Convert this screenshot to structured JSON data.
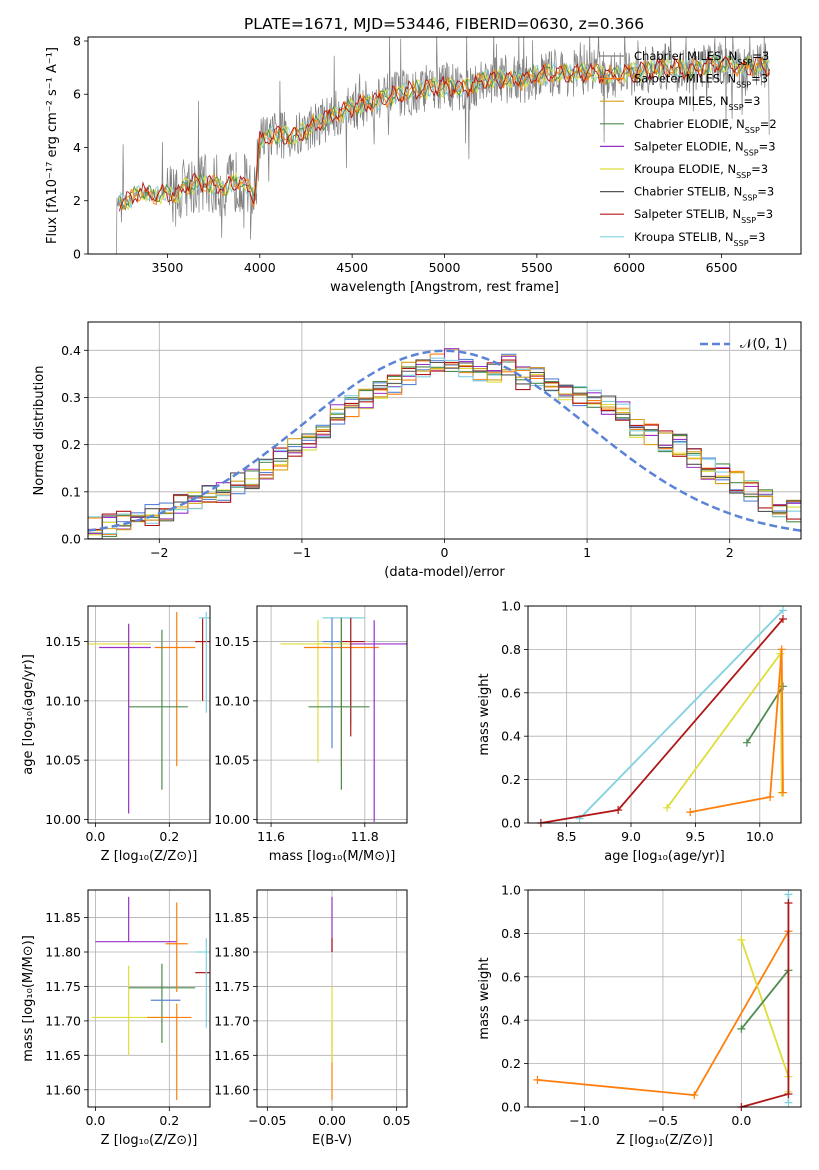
{
  "figure": {
    "title": "PLATE=1671, MJD=53446, FIBERID=0630, z=0.366"
  },
  "colors": {
    "chabrier_miles": "#808080",
    "salpeter_miles": "#ff7f0e",
    "kroupa_miles": "#d4a017",
    "chabrier_elodie": "#4e8b4e",
    "salpeter_elodie": "#9b30c8",
    "kroupa_elodie": "#dede3a",
    "chabrier_stelib": "#555555",
    "salpeter_stelib": "#b01818",
    "kroupa_stelib": "#80d0e0",
    "normal": "#5b84d6"
  },
  "chart_data": [
    {
      "id": "spectrum",
      "type": "line",
      "xlabel": "wavelength [Angstrom, rest frame]",
      "ylabel": "Flux [fλ10⁻¹⁷ erg cm⁻² s⁻¹ A⁻¹]",
      "xlim": [
        3070,
        6930
      ],
      "ylim": [
        0,
        8.15
      ],
      "xticks": [
        "3500",
        "4000",
        "4500",
        "5000",
        "5500",
        "6000",
        "6500"
      ],
      "yticks": [
        "0",
        "2",
        "4",
        "6",
        "8"
      ],
      "grid": false,
      "legend_position": "top-right",
      "legend": [
        "Chabrier MILES, N_SSP=3",
        "Salpeter MILES, N_SSP=3",
        "Kroupa MILES, N_SSP=3",
        "Chabrier ELODIE, N_SSP=2",
        "Salpeter ELODIE, N_SSP=3",
        "Kroupa ELODIE, N_SSP=3",
        "Chabrier STELIB, N_SSP=3",
        "Salpeter STELIB, N_SSP=3",
        "Kroupa STELIB, N_SSP=3"
      ],
      "model_envelope": {
        "x": [
          3220,
          3300,
          3350,
          3400,
          3500,
          3560,
          3600,
          3700,
          3800,
          3900,
          3970,
          4000,
          4100,
          4200,
          4300,
          4400,
          4500,
          4600,
          4700,
          4800,
          4900,
          5000,
          5100,
          5200,
          5300,
          5400,
          5500,
          5600,
          5700,
          5800,
          5900,
          6000,
          6100,
          6200,
          6300,
          6400,
          6500,
          6600,
          6700,
          6750
        ],
        "y": [
          1.9,
          2.0,
          2.4,
          2.2,
          2.3,
          2.2,
          2.6,
          2.7,
          2.5,
          2.8,
          2.1,
          4.3,
          4.5,
          4.4,
          4.9,
          5.2,
          5.5,
          5.7,
          5.9,
          6.1,
          6.2,
          6.3,
          6.2,
          6.5,
          6.6,
          6.5,
          6.7,
          6.8,
          6.8,
          6.8,
          6.7,
          6.8,
          6.9,
          7.0,
          6.9,
          7.0,
          7.2,
          7.0,
          7.1,
          7.0
        ]
      }
    },
    {
      "id": "residuals",
      "type": "histogram",
      "xlabel": "(data-model)/error",
      "ylabel": "Normed distribution",
      "xlim": [
        -2.5,
        2.5
      ],
      "ylim": [
        0,
        0.46
      ],
      "xticks": [
        "−2",
        "−1",
        "0",
        "1",
        "2"
      ],
      "yticks": [
        "0.0",
        "0.1",
        "0.2",
        "0.3",
        "0.4"
      ],
      "grid": true,
      "legend_position": "top-right",
      "legend": [
        "𝒩(0, 1)"
      ],
      "bin_edges": [
        -2.5,
        -2.4,
        -2.3,
        -2.2,
        -2.1,
        -2.0,
        -1.9,
        -1.8,
        -1.7,
        -1.6,
        -1.5,
        -1.4,
        -1.3,
        -1.2,
        -1.1,
        -1.0,
        -0.9,
        -0.8,
        -0.7,
        -0.6,
        -0.5,
        -0.4,
        -0.3,
        -0.2,
        -0.1,
        0.0,
        0.1,
        0.2,
        0.3,
        0.4,
        0.5,
        0.6,
        0.7,
        0.8,
        0.9,
        1.0,
        1.1,
        1.2,
        1.3,
        1.4,
        1.5,
        1.6,
        1.7,
        1.8,
        1.9,
        2.0,
        2.1,
        2.2,
        2.3,
        2.4,
        2.5
      ],
      "histogram_mean": [
        0.025,
        0.03,
        0.035,
        0.045,
        0.05,
        0.06,
        0.07,
        0.08,
        0.09,
        0.1,
        0.12,
        0.13,
        0.15,
        0.17,
        0.19,
        0.2,
        0.23,
        0.26,
        0.28,
        0.3,
        0.32,
        0.33,
        0.35,
        0.36,
        0.37,
        0.38,
        0.36,
        0.36,
        0.35,
        0.37,
        0.34,
        0.34,
        0.33,
        0.31,
        0.3,
        0.3,
        0.28,
        0.27,
        0.24,
        0.22,
        0.21,
        0.2,
        0.17,
        0.15,
        0.14,
        0.12,
        0.1,
        0.08,
        0.07,
        0.06
      ],
      "normal_curve": {
        "mean": 0,
        "sigma": 1
      }
    },
    {
      "id": "age-vs-Z",
      "type": "scatter",
      "xlabel": "Z [log₁₀(Z/Z⊙)]",
      "ylabel": "age  [log₁₀(age/yr)]",
      "xlim": [
        -0.02,
        0.31
      ],
      "ylim": [
        9.997,
        10.18
      ],
      "xticks": [
        "0.0",
        "0.2"
      ],
      "yticks": [
        "10.00",
        "10.05",
        "10.10",
        "10.15"
      ],
      "grid": true,
      "crosses": [
        {
          "x": 0.09,
          "y": 10.148,
          "xerr": [
            0.11,
            0.06
          ],
          "yerr": [
            0.05,
            0.015
          ],
          "color": "kroupa_elodie"
        },
        {
          "x": 0.22,
          "y": 10.145,
          "xerr": [
            0.06,
            0.05
          ],
          "yerr": [
            0.1,
            0.03
          ],
          "color": "salpeter_miles"
        },
        {
          "x": 0.29,
          "y": 10.15,
          "xerr": [
            0.02,
            0.02
          ],
          "yerr": [
            0.05,
            0.02
          ],
          "color": "salpeter_stelib"
        },
        {
          "x": 0.3,
          "y": 10.17,
          "xerr": [
            0.02,
            0.01
          ],
          "yerr": [
            0.08,
            0.005
          ],
          "color": "kroupa_stelib"
        },
        {
          "x": 0.18,
          "y": 10.095,
          "xerr": [
            0.09,
            0.07
          ],
          "yerr": [
            0.07,
            0.065
          ],
          "color": "chabrier_elodie"
        },
        {
          "x": 0.09,
          "y": 10.145,
          "xerr": [
            0.08,
            0.06
          ],
          "yerr": [
            0.14,
            0.02
          ],
          "color": "salpeter_elodie"
        }
      ]
    },
    {
      "id": "age-vs-mass",
      "type": "scatter",
      "xlabel": "mass [log₁₀(M/M⊙)]",
      "xlim": [
        11.57,
        11.89
      ],
      "ylim": [
        9.997,
        10.18
      ],
      "xticks": [
        "11.6",
        "11.8"
      ],
      "yticks": [
        "10.00",
        "10.05",
        "10.10",
        "10.15"
      ],
      "grid": true,
      "crosses": [
        {
          "x": 11.7,
          "y": 10.148,
          "xerr": [
            0.08,
            0.08
          ],
          "yerr": [
            0.1,
            0.02
          ],
          "color": "kroupa_elodie"
        },
        {
          "x": 11.75,
          "y": 10.145,
          "xerr": [
            0.08,
            0.08
          ],
          "yerr": [
            0.1,
            0.025
          ],
          "color": "salpeter_miles"
        },
        {
          "x": 11.82,
          "y": 10.148,
          "xerr": [
            0.05,
            0.07
          ],
          "yerr": [
            0.15,
            0.02
          ],
          "color": "salpeter_elodie"
        },
        {
          "x": 11.77,
          "y": 10.17,
          "xerr": [
            0.06,
            0.03
          ],
          "yerr": [
            0.09,
            0.0
          ],
          "color": "kroupa_stelib"
        },
        {
          "x": 11.77,
          "y": 10.15,
          "xerr": [
            0.03,
            0.03
          ],
          "yerr": [
            0.08,
            0.02
          ],
          "color": "salpeter_stelib"
        },
        {
          "x": 11.75,
          "y": 10.095,
          "xerr": [
            0.07,
            0.06
          ],
          "yerr": [
            0.07,
            0.075
          ],
          "color": "chabrier_elodie"
        },
        {
          "x": 11.73,
          "y": 10.15,
          "xerr": [
            0.02,
            0.02
          ],
          "yerr": [
            0.09,
            0.02
          ],
          "color": "normal"
        }
      ]
    },
    {
      "id": "weight-vs-age",
      "type": "line",
      "xlabel": "age  [log₁₀(age/yr)]",
      "ylabel": "mass weight",
      "xlim": [
        8.2,
        10.32
      ],
      "ylim": [
        0,
        1
      ],
      "xticks": [
        "8.5",
        "9.0",
        "9.5",
        "10.0"
      ],
      "yticks": [
        "0.0",
        "0.2",
        "0.4",
        "0.6",
        "0.8",
        "1.0"
      ],
      "grid": true,
      "series": [
        {
          "color": "kroupa_stelib",
          "x": [
            8.6,
            10.18
          ],
          "y": [
            0.02,
            0.98
          ]
        },
        {
          "color": "salpeter_stelib",
          "x": [
            8.3,
            8.9,
            10.18
          ],
          "y": [
            0.0,
            0.06,
            0.94
          ]
        },
        {
          "color": "kroupa_elodie",
          "x": [
            9.28,
            10.16,
            10.17
          ],
          "y": [
            0.07,
            0.78,
            0.14
          ]
        },
        {
          "color": "chabrier_elodie",
          "x": [
            9.9,
            10.18
          ],
          "y": [
            0.37,
            0.63
          ]
        },
        {
          "color": "salpeter_miles",
          "x": [
            9.46,
            10.08,
            10.17,
            10.18
          ],
          "y": [
            0.05,
            0.12,
            0.8,
            0.14
          ]
        }
      ]
    },
    {
      "id": "mass-vs-Z",
      "type": "scatter",
      "xlabel": "Z [log₁₀(Z/Z⊙)]",
      "ylabel": "mass [log₁₀(M/M⊙)]",
      "xlim": [
        -0.02,
        0.31
      ],
      "ylim": [
        11.575,
        11.89
      ],
      "xticks": [
        "0.0",
        "0.2"
      ],
      "yticks": [
        "11.60",
        "11.65",
        "11.70",
        "11.75",
        "11.80",
        "11.85"
      ],
      "grid": true,
      "crosses": [
        {
          "x": 0.09,
          "y": 11.815,
          "xerr": [
            0.09,
            0.13
          ],
          "yerr": [
            0.0,
            0.065
          ],
          "color": "salpeter_elodie"
        },
        {
          "x": 0.09,
          "y": 11.705,
          "xerr": [
            0.1,
            0.13
          ],
          "yerr": [
            0.055,
            0.075
          ],
          "color": "kroupa_elodie"
        },
        {
          "x": 0.18,
          "y": 11.748,
          "xerr": [
            0.09,
            0.09
          ],
          "yerr": [
            0.08,
            0.035
          ],
          "color": "chabrier_elodie"
        },
        {
          "x": 0.22,
          "y": 11.705,
          "xerr": [
            0.08,
            0.04
          ],
          "yerr": [
            0.12,
            0.02
          ],
          "color": "salpeter_miles"
        },
        {
          "x": 0.22,
          "y": 11.812,
          "xerr": [
            0.03,
            0.03
          ],
          "yerr": [
            0.07,
            0.06
          ],
          "color": "salpeter_miles"
        },
        {
          "x": 0.2,
          "y": 11.73,
          "xerr": [
            0.05,
            0.03
          ],
          "yerr": [
            0.0,
            0.0
          ],
          "color": "normal"
        },
        {
          "x": 0.29,
          "y": 11.77,
          "xerr": [
            0.02,
            0.02
          ],
          "yerr": [
            0.0,
            0.0
          ],
          "color": "salpeter_stelib"
        },
        {
          "x": 0.3,
          "y": 11.8,
          "xerr": [
            0.03,
            0.01
          ],
          "yerr": [
            0.11,
            0.02
          ],
          "color": "kroupa_stelib"
        }
      ]
    },
    {
      "id": "mass-vs-EBV",
      "type": "scatter",
      "xlabel": "E(B-V)",
      "xlim": [
        -0.058,
        0.058
      ],
      "ylim": [
        11.575,
        11.89
      ],
      "xticks": [
        "−0.05",
        "0.00",
        "0.05"
      ],
      "yticks": [
        "11.60",
        "11.65",
        "11.70",
        "11.75",
        "11.80",
        "11.85"
      ],
      "grid": true,
      "crosses": [
        {
          "x": 0.0,
          "y": 11.8,
          "xerr": [
            0,
            0
          ],
          "yerr": [
            0.0,
            0.08
          ],
          "color": "salpeter_elodie"
        },
        {
          "x": 0.0,
          "y": 11.8,
          "xerr": [
            0,
            0
          ],
          "yerr": [
            0.0,
            0.02
          ],
          "color": "salpeter_stelib"
        },
        {
          "x": 0.0,
          "y": 11.7,
          "xerr": [
            0,
            0
          ],
          "yerr": [
            0.115,
            0.0
          ],
          "color": "salpeter_miles"
        },
        {
          "x": 0.0,
          "y": 11.7,
          "xerr": [
            0,
            0
          ],
          "yerr": [
            0.06,
            0.05
          ],
          "color": "kroupa_elodie"
        }
      ]
    },
    {
      "id": "weight-vs-Z",
      "type": "line",
      "xlabel": "Z [log₁₀(Z/Z⊙)]",
      "ylabel": "mass weight",
      "xlim": [
        -1.36,
        0.38
      ],
      "ylim": [
        0,
        1
      ],
      "xticks": [
        "−1.0",
        "−0.5",
        "0.0"
      ],
      "yticks": [
        "0.0",
        "0.2",
        "0.4",
        "0.6",
        "0.8",
        "1.0"
      ],
      "grid": true,
      "series": [
        {
          "color": "salpeter_miles",
          "x": [
            -1.3,
            -0.3,
            0.3
          ],
          "y": [
            0.125,
            0.055,
            0.81
          ]
        },
        {
          "color": "kroupa_elodie",
          "x": [
            0.0,
            0.3,
            0.3
          ],
          "y": [
            0.77,
            0.14,
            0.07
          ]
        },
        {
          "color": "chabrier_elodie",
          "x": [
            0.0,
            0.3
          ],
          "y": [
            0.36,
            0.63
          ]
        },
        {
          "color": "kroupa_stelib",
          "x": [
            0.3,
            0.3
          ],
          "y": [
            0.02,
            0.98
          ]
        },
        {
          "color": "salpeter_stelib",
          "x": [
            0.0,
            0.3,
            0.3
          ],
          "y": [
            0.0,
            0.06,
            0.94
          ]
        }
      ]
    }
  ]
}
